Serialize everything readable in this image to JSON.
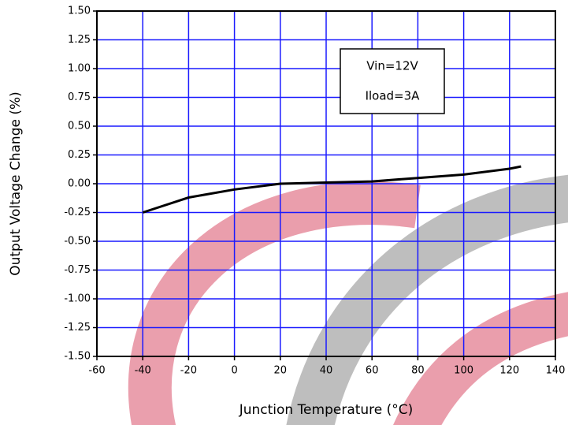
{
  "chart_data": {
    "type": "line",
    "x_label": "Junction Temperature (°C)",
    "y_label": "Output Voltage Change (%)",
    "annotations": [
      "Vin=12V",
      "Iload=3A"
    ],
    "x": [
      -40,
      -20,
      0,
      20,
      40,
      60,
      80,
      100,
      120,
      125
    ],
    "series": [
      {
        "color": "#000000",
        "values": [
          -0.25,
          -0.12,
          -0.05,
          0.0,
          0.01,
          0.02,
          0.05,
          0.08,
          0.13,
          0.15
        ]
      }
    ],
    "xlim": [
      -60,
      140
    ],
    "xticks": [
      -60,
      -40,
      -20,
      0,
      20,
      40,
      60,
      80,
      100,
      120,
      140
    ],
    "ylim": [
      -1.5,
      1.5
    ],
    "yticks": [
      {
        "value": -1.5,
        "label": "-1.50"
      },
      {
        "value": -1.25,
        "label": "-1.25"
      },
      {
        "value": -1,
        "label": "-1.00"
      },
      {
        "value": -0.75,
        "label": "-0.75"
      },
      {
        "value": -0.5,
        "label": "-0.50"
      },
      {
        "value": -0.25,
        "label": "-0.25"
      },
      {
        "value": 0,
        "label": "0.00"
      },
      {
        "value": 0.25,
        "label": "0.25"
      },
      {
        "value": 0.5,
        "label": "0.50"
      },
      {
        "value": 0.75,
        "label": "0.75"
      },
      {
        "value": 1,
        "label": "1.00"
      },
      {
        "value": 1.25,
        "label": "1.25"
      },
      {
        "value": 1.5,
        "label": "1.50"
      }
    ],
    "grid": true,
    "grid_color": "#1a1aff"
  }
}
